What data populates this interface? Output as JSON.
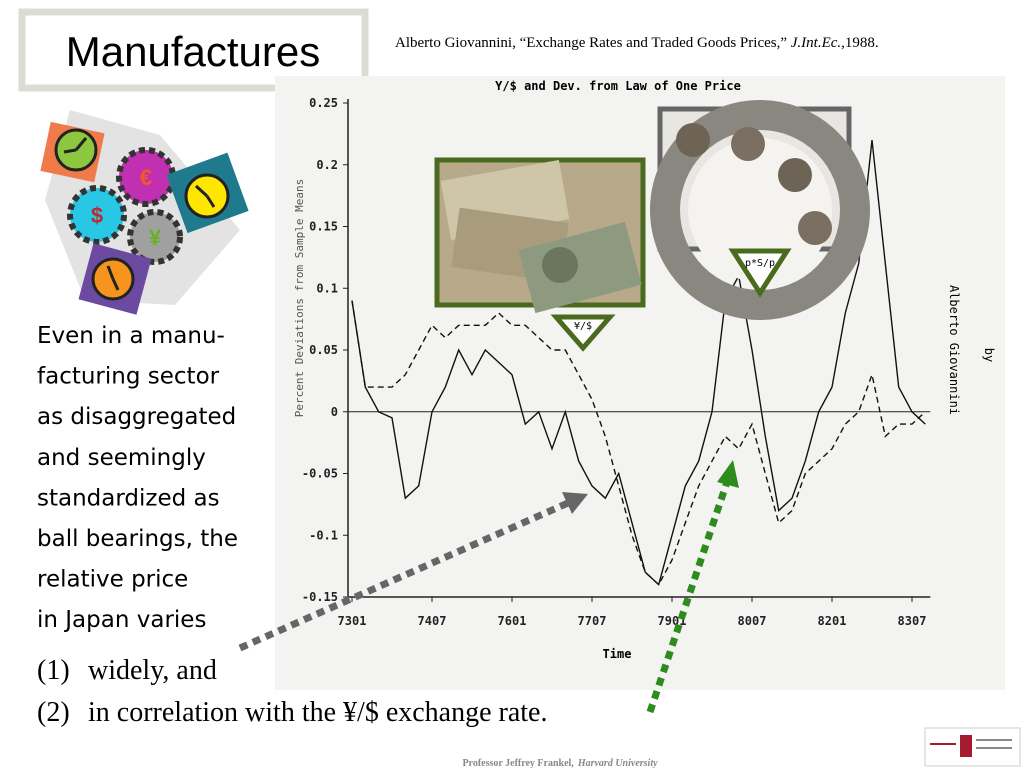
{
  "header": {
    "title": "Manufactures"
  },
  "citation": {
    "author_title": "Alberto Giovannini, “Exchange Rates and Traded Goods Prices,” ",
    "journal": "J.Int.Ec.",
    "year": ",1988."
  },
  "body": {
    "lines": [
      "Even in a manu-",
      "facturing sector",
      "as disaggregated",
      "and seemingly",
      "standardized as",
      "ball bearings, the",
      "relative price",
      "in Japan varies"
    ],
    "items": [
      {
        "num": "(1)",
        "text": "widely,   and"
      },
      {
        "num": "(2)",
        "text": "in correlation with the ¥/$ exchange rate."
      }
    ]
  },
  "chart_data": {
    "type": "line",
    "title": "Y/$ and Dev. from Law of One Price",
    "xlabel": "Time",
    "ylabel": "Percent Deviations from Sample Means",
    "side_text": [
      "Alberto Giovannini",
      "by"
    ],
    "categories": [
      "7301",
      null,
      null,
      null,
      null,
      null,
      "7407",
      null,
      null,
      null,
      null,
      null,
      "7601",
      null,
      null,
      null,
      null,
      null,
      "7707",
      null,
      null,
      null,
      null,
      null,
      "7901",
      null,
      null,
      null,
      null,
      null,
      "8007",
      null,
      null,
      null,
      null,
      null,
      "8201",
      null,
      null,
      null,
      null,
      null,
      "8307",
      null
    ],
    "ylim": [
      -0.15,
      0.25
    ],
    "yticks": [
      -0.15,
      -0.1,
      -0.05,
      0,
      0.05,
      0.1,
      0.15,
      0.2,
      0.25
    ],
    "series": [
      {
        "name": "p*S/p",
        "color": "#111111",
        "style": "solid",
        "values": [
          0.09,
          0.02,
          0.0,
          -0.005,
          -0.07,
          -0.06,
          0.0,
          0.02,
          0.05,
          0.03,
          0.05,
          0.04,
          0.03,
          -0.01,
          0.0,
          -0.03,
          0.0,
          -0.04,
          -0.06,
          -0.07,
          -0.05,
          -0.09,
          -0.13,
          -0.14,
          -0.1,
          -0.06,
          -0.04,
          0.0,
          0.09,
          0.11,
          0.05,
          -0.02,
          -0.08,
          -0.07,
          -0.04,
          0.0,
          0.02,
          0.08,
          0.12,
          0.22,
          0.12,
          0.02,
          0.0,
          -0.01
        ]
      },
      {
        "name": "¥/$",
        "color": "#111111",
        "style": "dashed",
        "values": [
          0.09,
          0.02,
          0.02,
          0.02,
          0.03,
          0.05,
          0.07,
          0.06,
          0.07,
          0.07,
          0.07,
          0.08,
          0.07,
          0.07,
          0.06,
          0.05,
          0.05,
          0.03,
          0.01,
          -0.02,
          -0.06,
          -0.1,
          -0.13,
          -0.14,
          -0.12,
          -0.09,
          -0.06,
          -0.04,
          -0.02,
          -0.03,
          -0.01,
          -0.05,
          -0.09,
          -0.08,
          -0.05,
          -0.04,
          -0.03,
          -0.01,
          0.0,
          0.03,
          -0.02,
          -0.01,
          -0.01,
          0.0
        ]
      }
    ]
  },
  "footer": {
    "name": "Professor Jeffrey Frankel,",
    "affiliation": "Harvard University"
  }
}
